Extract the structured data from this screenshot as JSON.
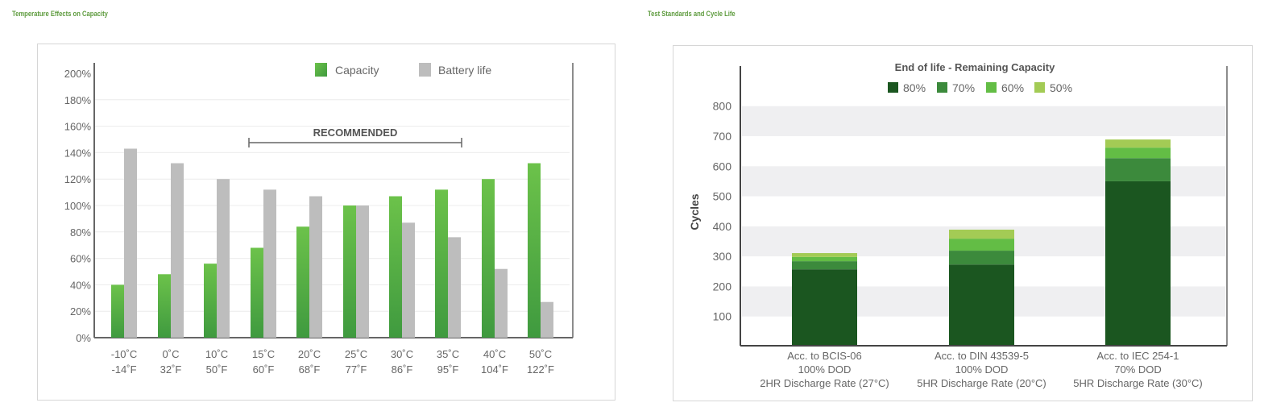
{
  "sections": {
    "left_title": "Temperature Effects on Capacity",
    "right_title": "Test Standards and Cycle Life"
  },
  "chart_data": [
    {
      "type": "bar",
      "title": "Temperature Effects on Capacity",
      "categories": [
        "-10°C -14°F",
        "0°C 32°F",
        "10°C 50°F",
        "15°C 60°F",
        "20°C 68°F",
        "25°C 77°F",
        "30°C 86°F",
        "35°C 95°F",
        "40°C 104°F",
        "50°C 122°F"
      ],
      "category_lines": [
        [
          "-10˚C",
          "-14˚F"
        ],
        [
          "0˚C",
          "32˚F"
        ],
        [
          "10˚C",
          "50˚F"
        ],
        [
          "15˚C",
          "60˚F"
        ],
        [
          "20˚C",
          "68˚F"
        ],
        [
          "25˚C",
          "77˚F"
        ],
        [
          "30˚C",
          "86˚F"
        ],
        [
          "35˚C",
          "95˚F"
        ],
        [
          "40˚C",
          "104˚F"
        ],
        [
          "50˚C",
          "122˚F"
        ]
      ],
      "series": [
        {
          "name": "Capacity",
          "color": "#5cb83f",
          "values": [
            40,
            48,
            56,
            68,
            84,
            100,
            107,
            112,
            120,
            132
          ]
        },
        {
          "name": "Battery life",
          "color": "#bdbdbd",
          "values": [
            143,
            132,
            120,
            112,
            107,
            100,
            87,
            76,
            52,
            27
          ]
        }
      ],
      "yticks": [
        "0%",
        "20%",
        "40%",
        "60%",
        "80%",
        "100%",
        "120%",
        "140%",
        "160%",
        "180%",
        "200%"
      ],
      "ylim": [
        0,
        200
      ],
      "xlabel": "",
      "ylabel": "",
      "grid": true,
      "legend_position": "top-right",
      "annotations": [
        {
          "text": "RECOMMENDED",
          "span": [
            "15°C",
            "35°C"
          ]
        }
      ]
    },
    {
      "type": "bar",
      "stacked": true,
      "title": "End of life - Remaining Capacity",
      "categories": [
        "Acc. to BCIS-06 100% DOD 2HR Discharge Rate (27°C)",
        "Acc. to DIN 43539-5 100% DOD 5HR Discharge Rate (20°C)",
        "Acc. to IEC 254-1 70% DOD 5HR Discharge Rate (30°C)"
      ],
      "category_lines": [
        [
          "Acc. to BCIS-06",
          "100% DOD",
          "2HR Discharge Rate (27°C)"
        ],
        [
          "Acc. to DIN 43539-5",
          "100% DOD",
          "5HR Discharge Rate (20°C)"
        ],
        [
          "Acc. to IEC 254-1",
          "70% DOD",
          "5HR Discharge Rate (30°C)"
        ]
      ],
      "series": [
        {
          "name": "80%",
          "color": "#1b5620",
          "cumulative": [
            257,
            273,
            550
          ]
        },
        {
          "name": "70%",
          "color": "#3c8a3c",
          "cumulative": [
            284,
            319,
            627
          ]
        },
        {
          "name": "60%",
          "color": "#63bd45",
          "cumulative": [
            298,
            359,
            662
          ]
        },
        {
          "name": "50%",
          "color": "#a3cb55",
          "cumulative": [
            311,
            389,
            689
          ]
        }
      ],
      "yticks": [
        "100",
        "200",
        "300",
        "400",
        "500",
        "600",
        "700",
        "800"
      ],
      "ylim": [
        0,
        900
      ],
      "xlabel": "",
      "ylabel": "Cycles",
      "grid": "banded",
      "legend_position": "top-center"
    }
  ]
}
